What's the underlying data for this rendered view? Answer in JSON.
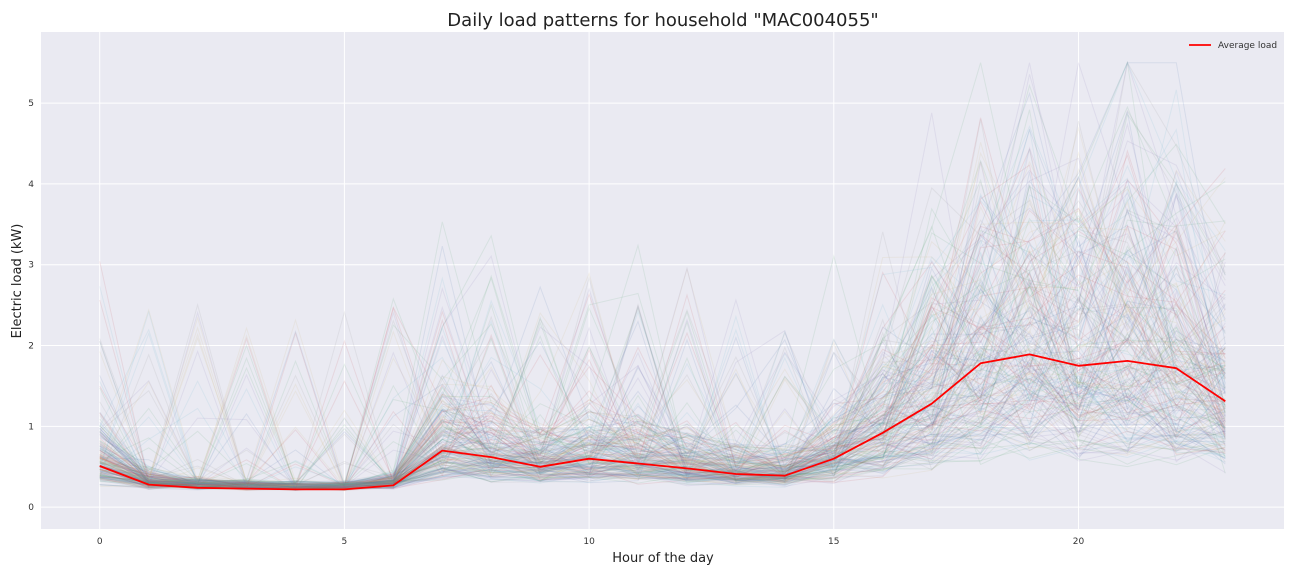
{
  "chart_data": {
    "type": "line",
    "title": "Daily load patterns for household \"MAC004055\"",
    "xlabel": "Hour of the day",
    "ylabel": "Electric load (kW)",
    "xlim": [
      -1.2,
      24.2
    ],
    "ylim": [
      -0.27,
      5.88
    ],
    "xticks": [
      0,
      5,
      10,
      15,
      20
    ],
    "yticks": [
      0,
      1,
      2,
      3,
      4,
      5
    ],
    "grid": true,
    "legend_position": "top-right",
    "x": [
      0,
      1,
      2,
      3,
      4,
      5,
      6,
      7,
      8,
      9,
      10,
      11,
      12,
      13,
      14,
      15,
      16,
      17,
      18,
      19,
      20,
      21,
      22,
      23
    ],
    "series": [
      {
        "name": "Average load",
        "color": "#ff0000",
        "values": [
          0.51,
          0.28,
          0.24,
          0.23,
          0.22,
          0.22,
          0.27,
          0.7,
          0.62,
          0.5,
          0.6,
          0.54,
          0.48,
          0.41,
          0.39,
          0.6,
          0.92,
          1.28,
          1.78,
          1.89,
          1.75,
          1.81,
          1.72,
          1.31
        ]
      }
    ],
    "daily_profiles_note_color": "#999999"
  }
}
